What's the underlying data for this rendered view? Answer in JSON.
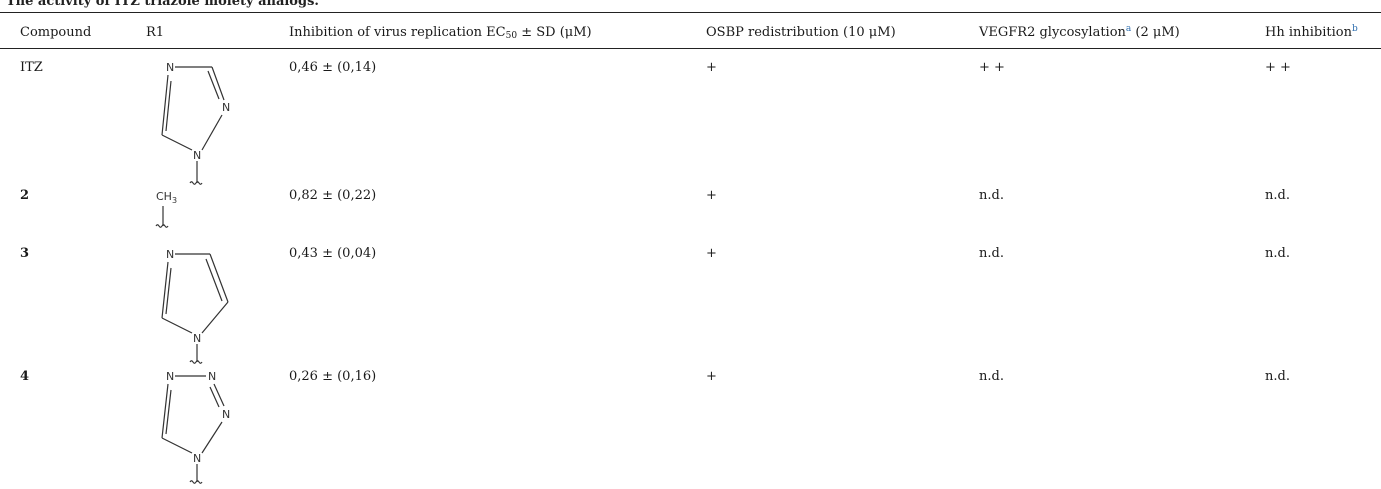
{
  "caption": "The activity of ITZ triazole moiety analogs.",
  "headers": {
    "compound": "Compound",
    "r1": "R1",
    "inhibition_main": "Inhibition of virus replication EC",
    "inhibition_sub": "50",
    "inhibition_rest": " ± SD (μM)",
    "osbp": "OSBP redistribution (10 μM)",
    "vegfr_main": "VEGFR2 glycosylation",
    "vegfr_sup": "a",
    "vegfr_rest": " (2 μM)",
    "hh_main": "Hh inhibition",
    "hh_sup": "b"
  },
  "rows": [
    {
      "compound": "ITZ",
      "inhibition": "0,46 ± (0,14)",
      "osbp": "+",
      "vegfr": "+ +",
      "hh": "+ +"
    },
    {
      "compound": "2",
      "inhibition": "0,82 ± (0,22)",
      "osbp": "+",
      "vegfr": "n.d.",
      "hh": "n.d."
    },
    {
      "compound": "3",
      "inhibition": "0,43 ± (0,04)",
      "osbp": "+",
      "vegfr": "n.d.",
      "hh": "n.d."
    },
    {
      "compound": "4",
      "inhibition": "0,26 ± (0,16)",
      "osbp": "+",
      "vegfr": "n.d.",
      "hh": "n.d."
    }
  ],
  "structure_labels": {
    "n": "N",
    "methyl_c": "CH",
    "methyl_sub": "3"
  }
}
